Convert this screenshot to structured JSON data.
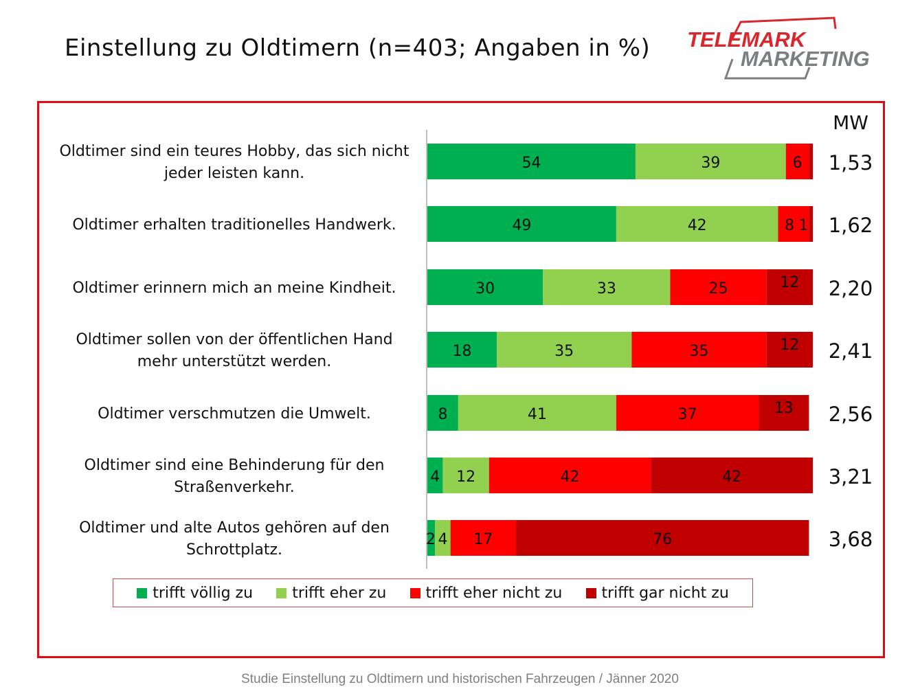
{
  "title": "Einstellung zu Oldtimern (n=403; Angaben in %)",
  "logo": {
    "line1": "TELEMARK",
    "line2": "MARKETING"
  },
  "footer": "Studie Einstellung zu Oldtimern und historischen Fahrzeugen / Jänner 2020",
  "colors": {
    "frame": "#e30613",
    "logo_red": "#d9262c",
    "logo_gray": "#7b7f82"
  },
  "chart_data": {
    "type": "bar",
    "orientation": "horizontal",
    "stacked": true,
    "xlim": [
      0,
      100
    ],
    "mean_header": "MW",
    "categories": [
      [
        "Oldtimer sind ein teures Hobby, das sich nicht",
        "jeder leisten kann."
      ],
      [
        "Oldtimer erhalten traditionelles Handwerk."
      ],
      [
        "Oldtimer erinnern mich an meine Kindheit."
      ],
      [
        "Oldtimer sollen von der öffentlichen Hand",
        "mehr unterstützt werden."
      ],
      [
        "Oldtimer verschmutzen die Umwelt."
      ],
      [
        "Oldtimer sind eine Behinderung für den",
        "Straßenverkehr."
      ],
      [
        "Oldtimer und alte Autos gehören auf den",
        "Schrottplatz."
      ]
    ],
    "series": [
      {
        "name": "trifft völlig zu",
        "color": "#00b050",
        "values": [
          54,
          49,
          30,
          18,
          8,
          4,
          2
        ]
      },
      {
        "name": "trifft eher zu",
        "color": "#92d050",
        "values": [
          39,
          42,
          33,
          35,
          41,
          12,
          4
        ]
      },
      {
        "name": "trifft eher nicht zu",
        "color": "#ff0000",
        "values": [
          6,
          8,
          25,
          35,
          37,
          42,
          17
        ]
      },
      {
        "name": "trifft gar nicht zu",
        "color": "#c00000",
        "values": [
          1,
          1,
          12,
          12,
          13,
          42,
          76
        ]
      }
    ],
    "data_labels": [
      [
        "54",
        "39",
        "6",
        ""
      ],
      [
        "49",
        "42",
        "8",
        "1"
      ],
      [
        "30",
        "33",
        "25",
        "12"
      ],
      [
        "18",
        "35",
        "35",
        "12"
      ],
      [
        "8",
        "41",
        "37",
        "13"
      ],
      [
        "4",
        "12",
        "42",
        "42"
      ],
      [
        "2",
        "4",
        "17",
        "76"
      ]
    ],
    "mean_values": [
      "1,53",
      "1,62",
      "2,20",
      "2,41",
      "2,56",
      "3,21",
      "3,68"
    ],
    "legend_position": "bottom",
    "grid": false
  }
}
